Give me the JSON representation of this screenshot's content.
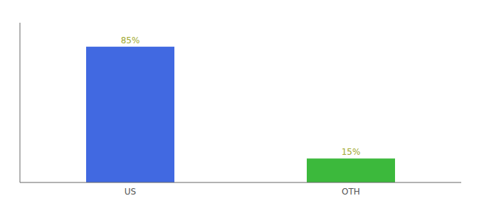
{
  "chart_data": {
    "type": "bar",
    "categories": [
      "US",
      "OTH"
    ],
    "values": [
      85,
      15
    ],
    "value_labels": [
      "85%",
      "15%"
    ],
    "colors": [
      "#4169e1",
      "#3cb93c"
    ],
    "ylim": [
      0,
      100
    ],
    "grid": false,
    "tick_labels": "x"
  }
}
